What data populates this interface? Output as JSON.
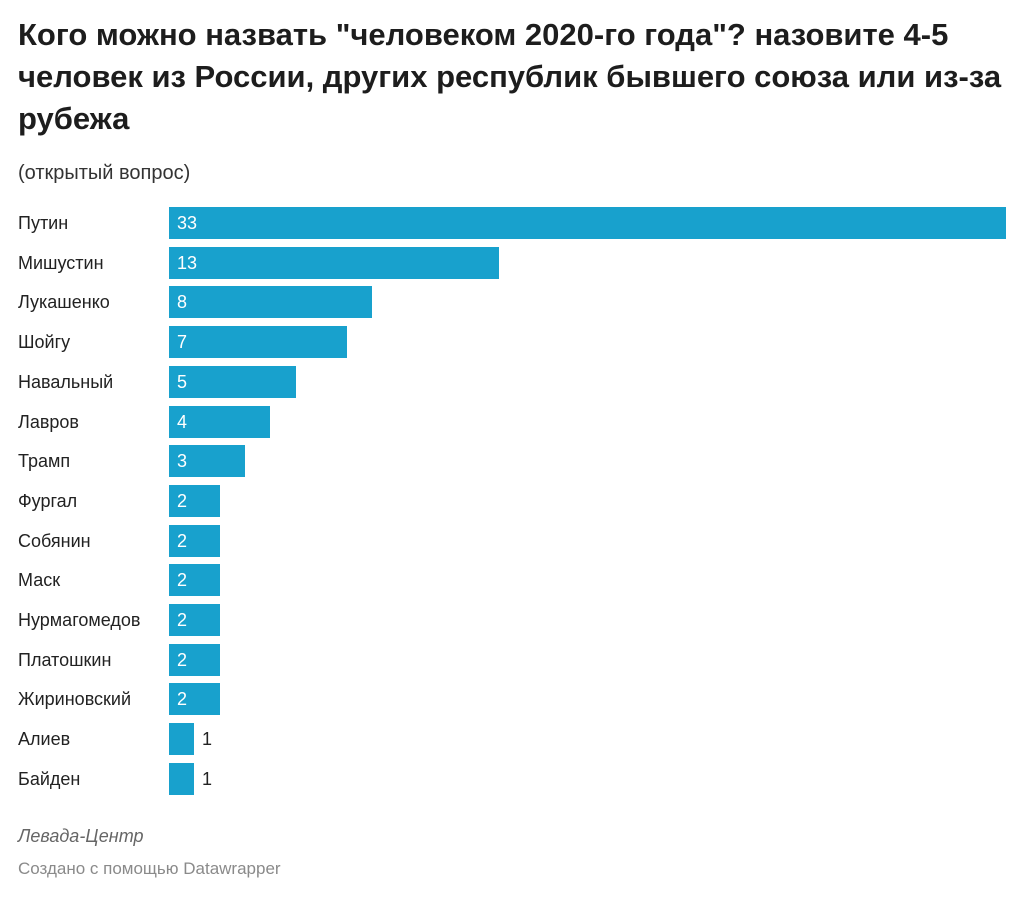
{
  "chart_data": {
    "type": "bar",
    "orientation": "horizontal",
    "title": "Кого можно назвать \"человеком 2020-го года\"? назовите 4-5 человек из России, других республик бывшего союза или из-за рубежа",
    "subtitle": "(открытый вопрос)",
    "categories": [
      "Путин",
      "Мишустин",
      "Лукашенко",
      "Шойгу",
      "Навальный",
      "Лавров",
      "Трамп",
      "Фургал",
      "Собянин",
      "Маск",
      "Нурмагомедов",
      "Платошкин",
      "Жириновский",
      "Алиев",
      "Байден"
    ],
    "values": [
      33,
      13,
      8,
      7,
      5,
      4,
      3,
      2,
      2,
      2,
      2,
      2,
      2,
      1,
      1
    ],
    "xlim": [
      0,
      33
    ],
    "grid": false,
    "bar_color": "#18a1cd"
  },
  "footer": {
    "source": "Левада-Центр",
    "credit": "Создано с помощью Datawrapper"
  }
}
